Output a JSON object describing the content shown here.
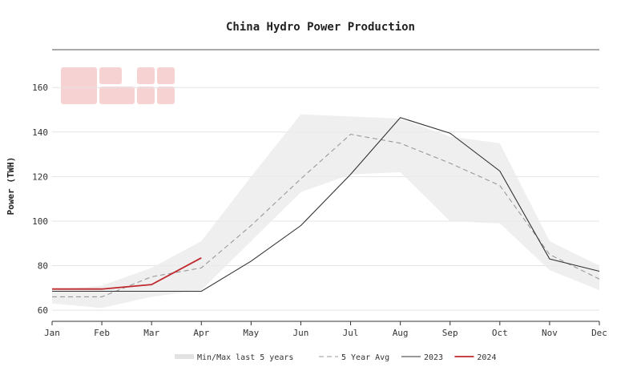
{
  "chart_data": {
    "type": "line",
    "title": "China Hydro Power Production",
    "xlabel": "",
    "ylabel": "Power (TWH)",
    "categories": [
      "Jan",
      "Feb",
      "Mar",
      "Apr",
      "May",
      "Jun",
      "Jul",
      "Aug",
      "Sep",
      "Oct",
      "Nov",
      "Dec"
    ],
    "yticks": [
      60,
      80,
      100,
      120,
      140,
      160
    ],
    "ylim": [
      55,
      177
    ],
    "grid": true,
    "legend_position": "bottom",
    "band": {
      "name": "Min/Max last 5 years",
      "color": "#ebebeb",
      "min": [
        63,
        61,
        66,
        69,
        91,
        113,
        121,
        122,
        100,
        99,
        78,
        69
      ],
      "max": [
        69,
        71,
        79,
        91,
        120,
        148,
        147,
        146,
        138,
        135,
        91,
        80
      ]
    },
    "series": [
      {
        "name": "5 Year Avg",
        "color": "#999999",
        "style": "dashed",
        "values": [
          66,
          66,
          75,
          79,
          98,
          119,
          139,
          135,
          126,
          116,
          85,
          74
        ]
      },
      {
        "name": "2023",
        "color": "#333333",
        "style": "solid",
        "values": [
          68.5,
          68.5,
          68.5,
          68.5,
          82,
          98,
          121,
          146.5,
          139.5,
          122.5,
          83,
          77.5
        ]
      },
      {
        "name": "2024",
        "color": "#c0282d",
        "style": "solid",
        "values": [
          69.5,
          69.5,
          71.5,
          83.5,
          null,
          null,
          null,
          null,
          null,
          null,
          null,
          null
        ]
      }
    ]
  }
}
